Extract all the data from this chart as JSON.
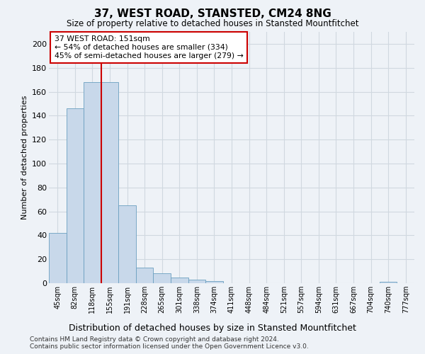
{
  "title": "37, WEST ROAD, STANSTED, CM24 8NG",
  "subtitle": "Size of property relative to detached houses in Stansted Mountfitchet",
  "xlabel": "Distribution of detached houses by size in Stansted Mountfitchet",
  "ylabel": "Number of detached properties",
  "footer1": "Contains HM Land Registry data © Crown copyright and database right 2024.",
  "footer2": "Contains public sector information licensed under the Open Government Licence v3.0.",
  "categories": [
    "45sqm",
    "82sqm",
    "118sqm",
    "155sqm",
    "191sqm",
    "228sqm",
    "265sqm",
    "301sqm",
    "338sqm",
    "374sqm",
    "411sqm",
    "448sqm",
    "484sqm",
    "521sqm",
    "557sqm",
    "594sqm",
    "631sqm",
    "667sqm",
    "704sqm",
    "740sqm",
    "777sqm"
  ],
  "values": [
    42,
    146,
    168,
    168,
    65,
    13,
    8,
    5,
    3,
    2,
    0,
    0,
    0,
    0,
    0,
    0,
    0,
    0,
    0,
    1,
    0
  ],
  "bar_color": "#c8d8ea",
  "bar_edge_color": "#6a9fc0",
  "grid_color": "#d0d8e0",
  "bg_color": "#eef2f7",
  "red_line_x": 2.5,
  "annotation_text": "37 WEST ROAD: 151sqm\n← 54% of detached houses are smaller (334)\n45% of semi-detached houses are larger (279) →",
  "annotation_box_color": "#ffffff",
  "annotation_box_edge": "#cc0000",
  "ylim": [
    0,
    210
  ],
  "yticks": [
    0,
    20,
    40,
    60,
    80,
    100,
    120,
    140,
    160,
    180,
    200
  ]
}
